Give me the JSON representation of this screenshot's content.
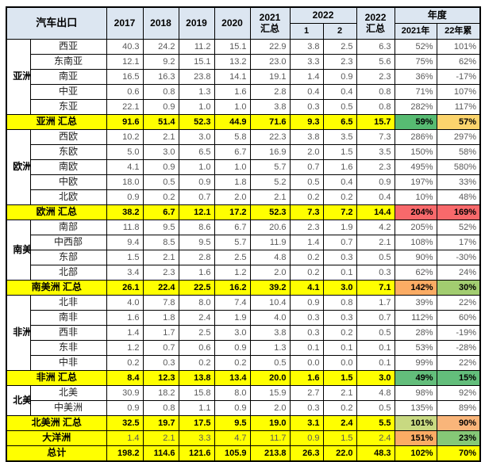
{
  "chart_data": {
    "type": "table",
    "title": "汽车出口",
    "header": {
      "corner": "汽车出口",
      "years": [
        "2017",
        "2018",
        "2019",
        "2020"
      ],
      "total2021": [
        "2021",
        "汇总"
      ],
      "group2022": {
        "label": "2022",
        "subs": [
          "1",
          "2"
        ]
      },
      "total2022": [
        "2022",
        "汇总"
      ],
      "yearly": {
        "label": "年度",
        "subs": [
          "2021年",
          "22年累"
        ]
      }
    },
    "colors": {
      "header_bg": "#DCE6F1",
      "summary_bg": "#FFFF00",
      "scale_green": "#63BE7B",
      "scale_yellow_green": "#A2CD70",
      "scale_light_green": "#C8D981",
      "scale_amber": "#FBD46D",
      "scale_orange": "#FBAC64",
      "scale_red": "#F8696B"
    },
    "sections": [
      {
        "region": "亚洲",
        "rows": [
          {
            "label": "西亚",
            "values": [
              "40.3",
              "24.2",
              "11.2",
              "15.1",
              "22.9",
              "3.8",
              "2.5",
              "6.3"
            ],
            "pcts": [
              "52%",
              "101%"
            ]
          },
          {
            "label": "东南亚",
            "values": [
              "12.1",
              "9.2",
              "15.1",
              "13.2",
              "23.0",
              "3.3",
              "2.3",
              "5.6"
            ],
            "pcts": [
              "75%",
              "62%"
            ]
          },
          {
            "label": "南亚",
            "values": [
              "16.5",
              "16.3",
              "23.8",
              "14.1",
              "19.1",
              "1.4",
              "0.9",
              "2.3"
            ],
            "pcts": [
              "36%",
              "-17%"
            ]
          },
          {
            "label": "中亚",
            "values": [
              "0.6",
              "0.8",
              "1.3",
              "1.6",
              "2.8",
              "0.4",
              "0.4",
              "0.8"
            ],
            "pcts": [
              "71%",
              "107%"
            ]
          },
          {
            "label": "东亚",
            "values": [
              "22.1",
              "0.9",
              "1.0",
              "1.0",
              "3.8",
              "0.3",
              "0.5",
              "0.8"
            ],
            "pcts": [
              "282%",
              "117%"
            ]
          }
        ],
        "total": {
          "label": "亚洲 汇总",
          "values": [
            "91.6",
            "51.4",
            "52.3",
            "44.9",
            "71.6",
            "9.3",
            "6.5",
            "15.7"
          ],
          "pcts": [
            "59%",
            "57%"
          ],
          "pct_bg": [
            "#57BB72",
            "#FBD46D"
          ]
        }
      },
      {
        "region": "欧洲",
        "rows": [
          {
            "label": "西欧",
            "values": [
              "10.2",
              "2.1",
              "3.0",
              "5.8",
              "22.3",
              "3.8",
              "3.5",
              "7.3"
            ],
            "pcts": [
              "286%",
              "297%"
            ]
          },
          {
            "label": "东欧",
            "values": [
              "5.0",
              "3.0",
              "6.5",
              "6.7",
              "16.9",
              "2.0",
              "1.5",
              "3.5"
            ],
            "pcts": [
              "150%",
              "58%"
            ]
          },
          {
            "label": "南欧",
            "values": [
              "4.1",
              "0.9",
              "1.0",
              "1.0",
              "5.7",
              "0.7",
              "1.6",
              "2.3"
            ],
            "pcts": [
              "495%",
              "580%"
            ]
          },
          {
            "label": "中欧",
            "values": [
              "18.0",
              "0.5",
              "0.9",
              "1.8",
              "5.2",
              "0.5",
              "0.4",
              "0.9"
            ],
            "pcts": [
              "197%",
              "33%"
            ]
          },
          {
            "label": "北欧",
            "values": [
              "0.9",
              "0.2",
              "0.7",
              "2.0",
              "2.1",
              "0.2",
              "0.2",
              "0.4"
            ],
            "pcts": [
              "10%",
              "48%"
            ]
          }
        ],
        "total": {
          "label": "欧洲 汇总",
          "values": [
            "38.2",
            "6.7",
            "12.1",
            "17.2",
            "52.3",
            "7.3",
            "7.2",
            "14.4"
          ],
          "pcts": [
            "204%",
            "169%"
          ],
          "pct_bg": [
            "#F8696B",
            "#F8696B"
          ]
        }
      },
      {
        "region": "南美洲",
        "rows": [
          {
            "label": "南部",
            "values": [
              "11.8",
              "9.5",
              "8.6",
              "6.7",
              "20.6",
              "2.3",
              "1.9",
              "4.2"
            ],
            "pcts": [
              "205%",
              "52%"
            ]
          },
          {
            "label": "中西部",
            "values": [
              "9.4",
              "8.5",
              "9.5",
              "5.7",
              "11.9",
              "1.4",
              "0.7",
              "2.1"
            ],
            "pcts": [
              "108%",
              "17%"
            ]
          },
          {
            "label": "东部",
            "values": [
              "1.5",
              "2.1",
              "2.8",
              "2.5",
              "4.8",
              "0.2",
              "0.3",
              "0.5"
            ],
            "pcts": [
              "90%",
              "-30%"
            ]
          },
          {
            "label": "北部",
            "values": [
              "3.4",
              "2.3",
              "1.6",
              "1.2",
              "2.0",
              "0.2",
              "0.1",
              "0.3"
            ],
            "pcts": [
              "62%",
              "24%"
            ]
          }
        ],
        "total": {
          "label": "南美洲 汇总",
          "values": [
            "26.1",
            "22.4",
            "22.5",
            "16.2",
            "39.2",
            "4.1",
            "3.0",
            "7.1"
          ],
          "pcts": [
            "142%",
            "30%"
          ],
          "pct_bg": [
            "#FBAC64",
            "#A2CD70"
          ]
        }
      },
      {
        "region": "非洲",
        "rows": [
          {
            "label": "北非",
            "values": [
              "4.0",
              "7.8",
              "8.0",
              "7.4",
              "10.4",
              "0.9",
              "0.8",
              "1.7"
            ],
            "pcts": [
              "39%",
              "22%"
            ]
          },
          {
            "label": "南非",
            "values": [
              "1.6",
              "1.8",
              "2.4",
              "1.9",
              "4.0",
              "0.3",
              "0.3",
              "0.7"
            ],
            "pcts": [
              "112%",
              "60%"
            ]
          },
          {
            "label": "西非",
            "values": [
              "1.4",
              "1.7",
              "2.5",
              "3.0",
              "3.8",
              "0.3",
              "0.2",
              "0.5"
            ],
            "pcts": [
              "28%",
              "-19%"
            ]
          },
          {
            "label": "东非",
            "values": [
              "1.2",
              "0.7",
              "0.6",
              "0.9",
              "1.3",
              "0.1",
              "0.1",
              "0.1"
            ],
            "pcts": [
              "53%",
              "-28%"
            ]
          },
          {
            "label": "中非",
            "values": [
              "0.2",
              "0.3",
              "0.2",
              "0.2",
              "0.5",
              "0.0",
              "0.0",
              "0.1"
            ],
            "pcts": [
              "99%",
              "22%"
            ]
          }
        ],
        "total": {
          "label": "非洲 汇总",
          "values": [
            "8.4",
            "12.3",
            "13.8",
            "13.4",
            "20.0",
            "1.6",
            "1.5",
            "3.0"
          ],
          "pcts": [
            "49%",
            "15%"
          ],
          "pct_bg": [
            "#63BE7B",
            "#63BE7B"
          ]
        }
      },
      {
        "region": "北美",
        "rows": [
          {
            "label": "北美",
            "values": [
              "30.9",
              "18.2",
              "15.8",
              "8.0",
              "15.9",
              "2.7",
              "2.1",
              "4.8"
            ],
            "pcts": [
              "98%",
              "92%"
            ]
          },
          {
            "label": "中美洲",
            "values": [
              "0.9",
              "0.8",
              "1.1",
              "0.9",
              "2.0",
              "0.3",
              "0.2",
              "0.5"
            ],
            "pcts": [
              "135%",
              "89%"
            ]
          }
        ],
        "total": {
          "label": "北美洲 汇总",
          "values": [
            "32.5",
            "19.7",
            "17.5",
            "9.5",
            "19.0",
            "3.1",
            "2.4",
            "5.5"
          ],
          "pcts": [
            "101%",
            "90%"
          ],
          "pct_bg": [
            "#C8D981",
            "#F9B57A"
          ]
        }
      }
    ],
    "oceania": {
      "label": "大洋洲",
      "values": [
        "1.4",
        "2.1",
        "3.3",
        "4.7",
        "11.7",
        "0.9",
        "1.5",
        "2.4"
      ],
      "pcts": [
        "151%",
        "23%"
      ],
      "pct_bg": [
        "#FBAC64",
        "#86C877"
      ]
    },
    "grand_total": {
      "label": "总计",
      "values": [
        "198.2",
        "114.6",
        "121.6",
        "105.9",
        "213.8",
        "26.3",
        "22.0",
        "48.3"
      ],
      "pcts": [
        "102%",
        "70%"
      ],
      "pct_bg": [
        null,
        null
      ]
    }
  }
}
